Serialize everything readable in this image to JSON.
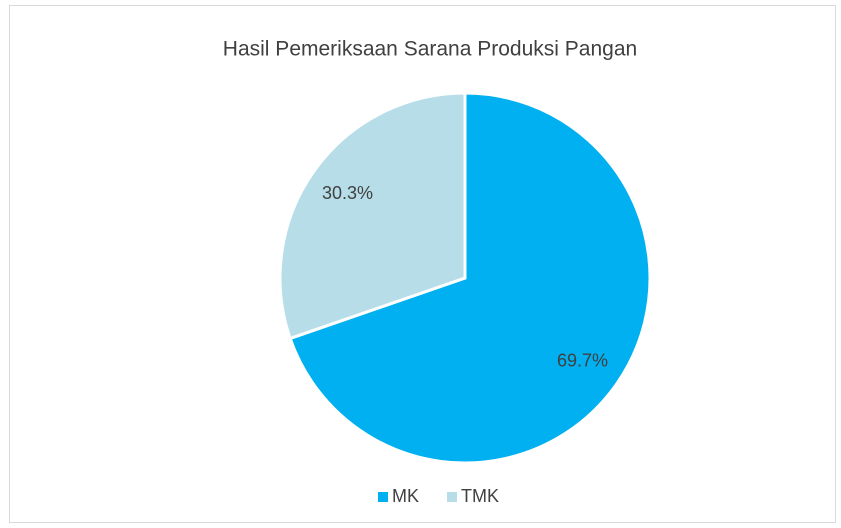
{
  "chart_data": {
    "type": "pie",
    "title": "Hasil Pemeriksaan Sarana Produksi Pangan",
    "categories": [
      "MK",
      "TMK"
    ],
    "values": [
      69.7,
      30.3
    ],
    "value_labels": [
      "69.7%",
      "30.3%"
    ],
    "colors": [
      "#00b0f0",
      "#b7dde8"
    ],
    "legend": "bottom"
  }
}
